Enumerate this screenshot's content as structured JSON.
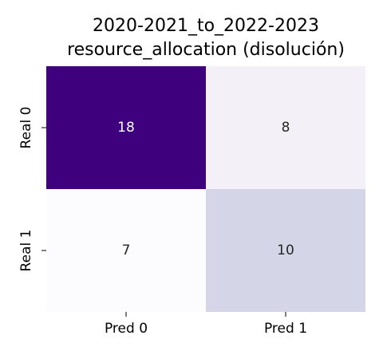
{
  "chart_data": {
    "type": "heatmap",
    "title": "2020-2021_to_2022-2023\nresource_allocation (disolución)",
    "x_categories": [
      "Pred 0",
      "Pred 1"
    ],
    "y_categories": [
      "Real 0",
      "Real 1"
    ],
    "values": [
      [
        18,
        8
      ],
      [
        7,
        10
      ]
    ],
    "colormap": "Purples",
    "value_range": [
      7,
      18
    ],
    "colorbar": false,
    "grid": false,
    "low_color": "#fcfbfd",
    "high_color": "#3f007d",
    "dark_text_color": "#262626",
    "light_text_color": "#ffffff"
  }
}
